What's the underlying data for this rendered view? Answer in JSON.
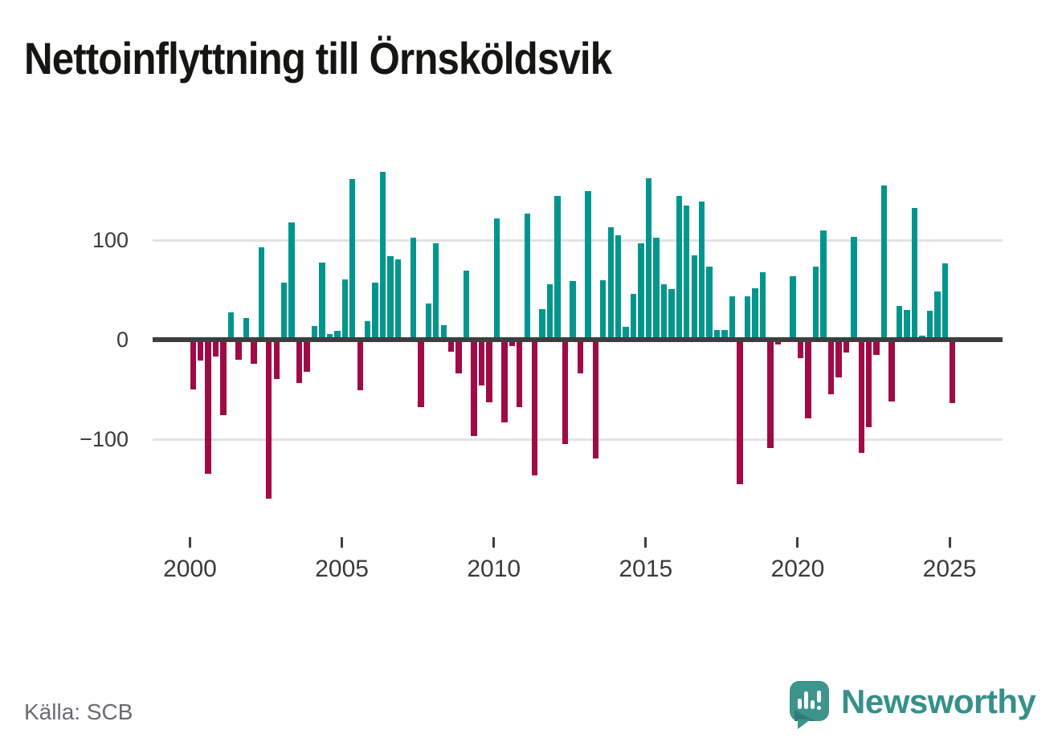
{
  "title": "Nettoinflyttning till Örnsköldsvik",
  "source": "Källa: SCB",
  "branding": {
    "name": "Newsworthy",
    "logo_icon": "bar-chart-exclamation-speech-bubble",
    "logo_color": "#3d948c",
    "text_color": "#35908a"
  },
  "colors": {
    "positive_bar": "#00968e",
    "negative_bar": "#a00a46",
    "zero_line": "#3e3e3e",
    "gridline": "#e3e3e3",
    "axis_text": "#3a3a3a",
    "title_text": "#151512",
    "source_text": "#6a6a72",
    "background": "#ffffff"
  },
  "chart_data": {
    "type": "bar",
    "title": "Nettoinflyttning till Örnsköldsvik",
    "frequency": "quarterly",
    "start_period": "2000 Q1",
    "end_period": "2025 Q1",
    "x_tick_labels": [
      "2000",
      "2005",
      "2010",
      "2015",
      "2020",
      "2025"
    ],
    "y_tick_labels": [
      "100",
      "0",
      "−100"
    ],
    "ylim": [
      -180,
      175
    ],
    "grid": "horizontal gridlines at 100 and -100, dark zero axis line",
    "legend": "none (color encodes sign: teal = positive net migration, crimson = negative)",
    "values": [
      -50,
      -21,
      -135,
      -17,
      -76,
      28,
      -20,
      22,
      -24,
      93,
      -160,
      -39,
      58,
      118,
      -43,
      -32,
      14,
      78,
      6,
      9,
      61,
      162,
      -51,
      19,
      58,
      169,
      84,
      81,
      3,
      103,
      -68,
      37,
      97,
      15,
      -12,
      -34,
      70,
      -97,
      -46,
      -63,
      122,
      -83,
      -6,
      -68,
      127,
      -136,
      31,
      56,
      145,
      -105,
      59,
      -34,
      150,
      -119,
      60,
      113,
      105,
      13,
      46,
      97,
      163,
      103,
      56,
      51,
      145,
      135,
      85,
      139,
      74,
      10,
      10,
      44,
      -145,
      44,
      52,
      68,
      -109,
      -5,
      0,
      64,
      -18,
      -79,
      74,
      110,
      -55,
      -38,
      -13,
      104,
      -114,
      -88,
      -15,
      155,
      -62,
      34,
      30,
      133,
      4,
      29,
      49,
      77,
      -64
    ]
  }
}
